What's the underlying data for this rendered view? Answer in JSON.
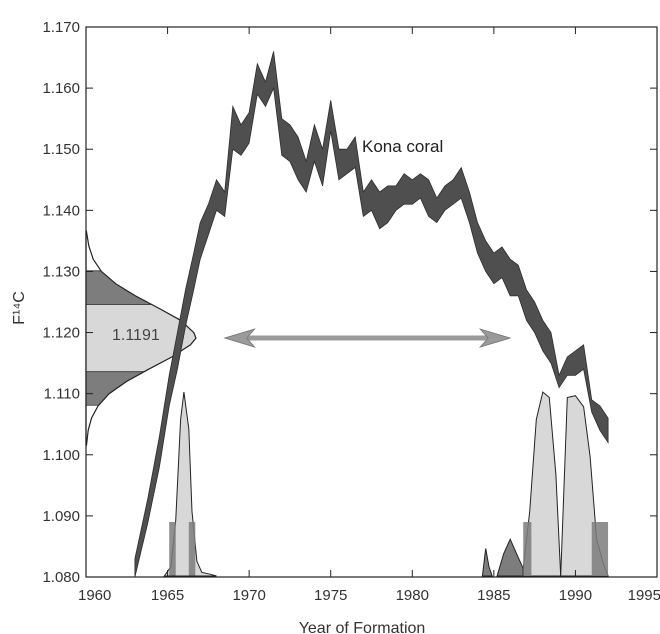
{
  "chart_data": {
    "type": "area",
    "xlabel": "Year of Formation",
    "ylabel": "F¹⁴C",
    "xlim": [
      1960,
      1995
    ],
    "ylim": [
      1.08,
      1.17
    ],
    "x_ticks": [
      "1960",
      "1965",
      "1970",
      "1975",
      "1980",
      "1985",
      "1990",
      "1995"
    ],
    "y_ticks": [
      "1.080",
      "1.090",
      "1.100",
      "1.110",
      "1.120",
      "1.130",
      "1.140",
      "1.150",
      "1.160",
      "1.170"
    ],
    "grid": false,
    "series": [
      {
        "name": "Kona coral",
        "x": [
          1963.0,
          1963.8,
          1964.5,
          1965.1,
          1965.6,
          1966.1,
          1966.6,
          1967.0,
          1967.5,
          1968.0,
          1968.5,
          1969.0,
          1969.5,
          1970.0,
          1970.5,
          1971.0,
          1971.5,
          1972.0,
          1972.5,
          1973.0,
          1973.5,
          1974.0,
          1974.5,
          1975.0,
          1975.5,
          1976.0,
          1976.5,
          1977.0,
          1977.5,
          1978.0,
          1978.5,
          1979.0,
          1979.5,
          1980.0,
          1980.5,
          1981.0,
          1981.5,
          1982.0,
          1982.5,
          1983.0,
          1983.5,
          1984.0,
          1984.5,
          1985.0,
          1985.5,
          1986.0,
          1986.5,
          1987.0,
          1987.5,
          1988.0,
          1988.5,
          1989.0,
          1989.5,
          1990.0,
          1990.5,
          1991.0,
          1991.5,
          1992.0
        ],
        "upper": [
          1.083,
          1.093,
          1.103,
          1.113,
          1.12,
          1.127,
          1.133,
          1.138,
          1.141,
          1.145,
          1.143,
          1.157,
          1.154,
          1.156,
          1.164,
          1.161,
          1.166,
          1.155,
          1.154,
          1.152,
          1.148,
          1.154,
          1.15,
          1.158,
          1.15,
          1.15,
          1.152,
          1.143,
          1.145,
          1.143,
          1.144,
          1.144,
          1.146,
          1.145,
          1.146,
          1.145,
          1.142,
          1.144,
          1.145,
          1.147,
          1.143,
          1.138,
          1.135,
          1.133,
          1.134,
          1.132,
          1.131,
          1.127,
          1.125,
          1.122,
          1.12,
          1.113,
          1.116,
          1.117,
          1.118,
          1.109,
          1.108,
          1.106
        ],
        "lower": [
          1.08,
          1.089,
          1.098,
          1.108,
          1.114,
          1.121,
          1.127,
          1.132,
          1.136,
          1.14,
          1.139,
          1.15,
          1.149,
          1.151,
          1.159,
          1.157,
          1.16,
          1.149,
          1.148,
          1.145,
          1.143,
          1.148,
          1.144,
          1.153,
          1.145,
          1.146,
          1.147,
          1.139,
          1.14,
          1.137,
          1.138,
          1.14,
          1.141,
          1.141,
          1.142,
          1.139,
          1.138,
          1.14,
          1.141,
          1.142,
          1.138,
          1.133,
          1.13,
          1.128,
          1.129,
          1.126,
          1.126,
          1.122,
          1.12,
          1.117,
          1.115,
          1.111,
          1.113,
          1.113,
          1.114,
          1.107,
          1.104,
          1.102
        ]
      }
    ],
    "annotations": {
      "series_label": "Kona coral",
      "sample_value": "1.1191",
      "sample_distribution": {
        "mean": 1.1191,
        "half_width_1sigma": 0.0055,
        "half_width_2sigma": 0.011,
        "curve_f": [
          1.1016,
          1.104,
          1.106,
          1.108,
          1.11,
          1.112,
          1.114,
          1.116,
          1.118,
          1.1191,
          1.12,
          1.122,
          1.124,
          1.126,
          1.128,
          1.13,
          1.132,
          1.1342,
          1.1366
        ],
        "curve_density": [
          0.005,
          0.02,
          0.05,
          0.11,
          0.21,
          0.37,
          0.57,
          0.78,
          0.95,
          1.0,
          0.98,
          0.86,
          0.66,
          0.45,
          0.27,
          0.14,
          0.065,
          0.025,
          0.004
        ]
      },
      "arrow_span_years": [
        1968.5,
        1986.0
      ]
    },
    "calibrated_probability": [
      {
        "name": "peak-1966",
        "x": [
          1964.8,
          1965.2,
          1965.5,
          1965.8,
          1966.0,
          1966.3,
          1966.5,
          1966.8,
          1967.1,
          1967.6,
          1968.0
        ],
        "density": [
          0.0,
          0.05,
          0.3,
          0.85,
          1.0,
          0.8,
          0.35,
          0.08,
          0.02,
          0.01,
          0.0
        ]
      },
      {
        "name": "peak-1984",
        "x": [
          1984.3,
          1984.5,
          1984.7,
          1984.9
        ],
        "density": [
          0.0,
          0.15,
          0.05,
          0.0
        ]
      },
      {
        "name": "peak-1986",
        "x": [
          1985.2,
          1985.6,
          1986.0,
          1986.4,
          1986.8
        ],
        "density": [
          0.0,
          0.12,
          0.2,
          0.12,
          0.04
        ]
      },
      {
        "name": "peak-1988",
        "x": [
          1986.8,
          1987.2,
          1987.6,
          1988.0,
          1988.4,
          1988.8,
          1989.1
        ],
        "density": [
          0.04,
          0.35,
          0.85,
          1.0,
          0.97,
          0.55,
          0.0
        ]
      },
      {
        "name": "peak-1990",
        "x": [
          1989.1,
          1989.5,
          1990.0,
          1990.5,
          1990.9,
          1991.3,
          1991.7,
          1992.0
        ],
        "density": [
          0.0,
          0.97,
          0.98,
          0.92,
          0.65,
          0.2,
          0.07,
          0.0
        ]
      }
    ],
    "colors": {
      "band": "#4f4f4f",
      "sigma1_fill": "#d8d8d8",
      "sigma2_fill": "#7d7d7d",
      "arrow": "#9a9a9a",
      "frame": "#222222"
    }
  }
}
